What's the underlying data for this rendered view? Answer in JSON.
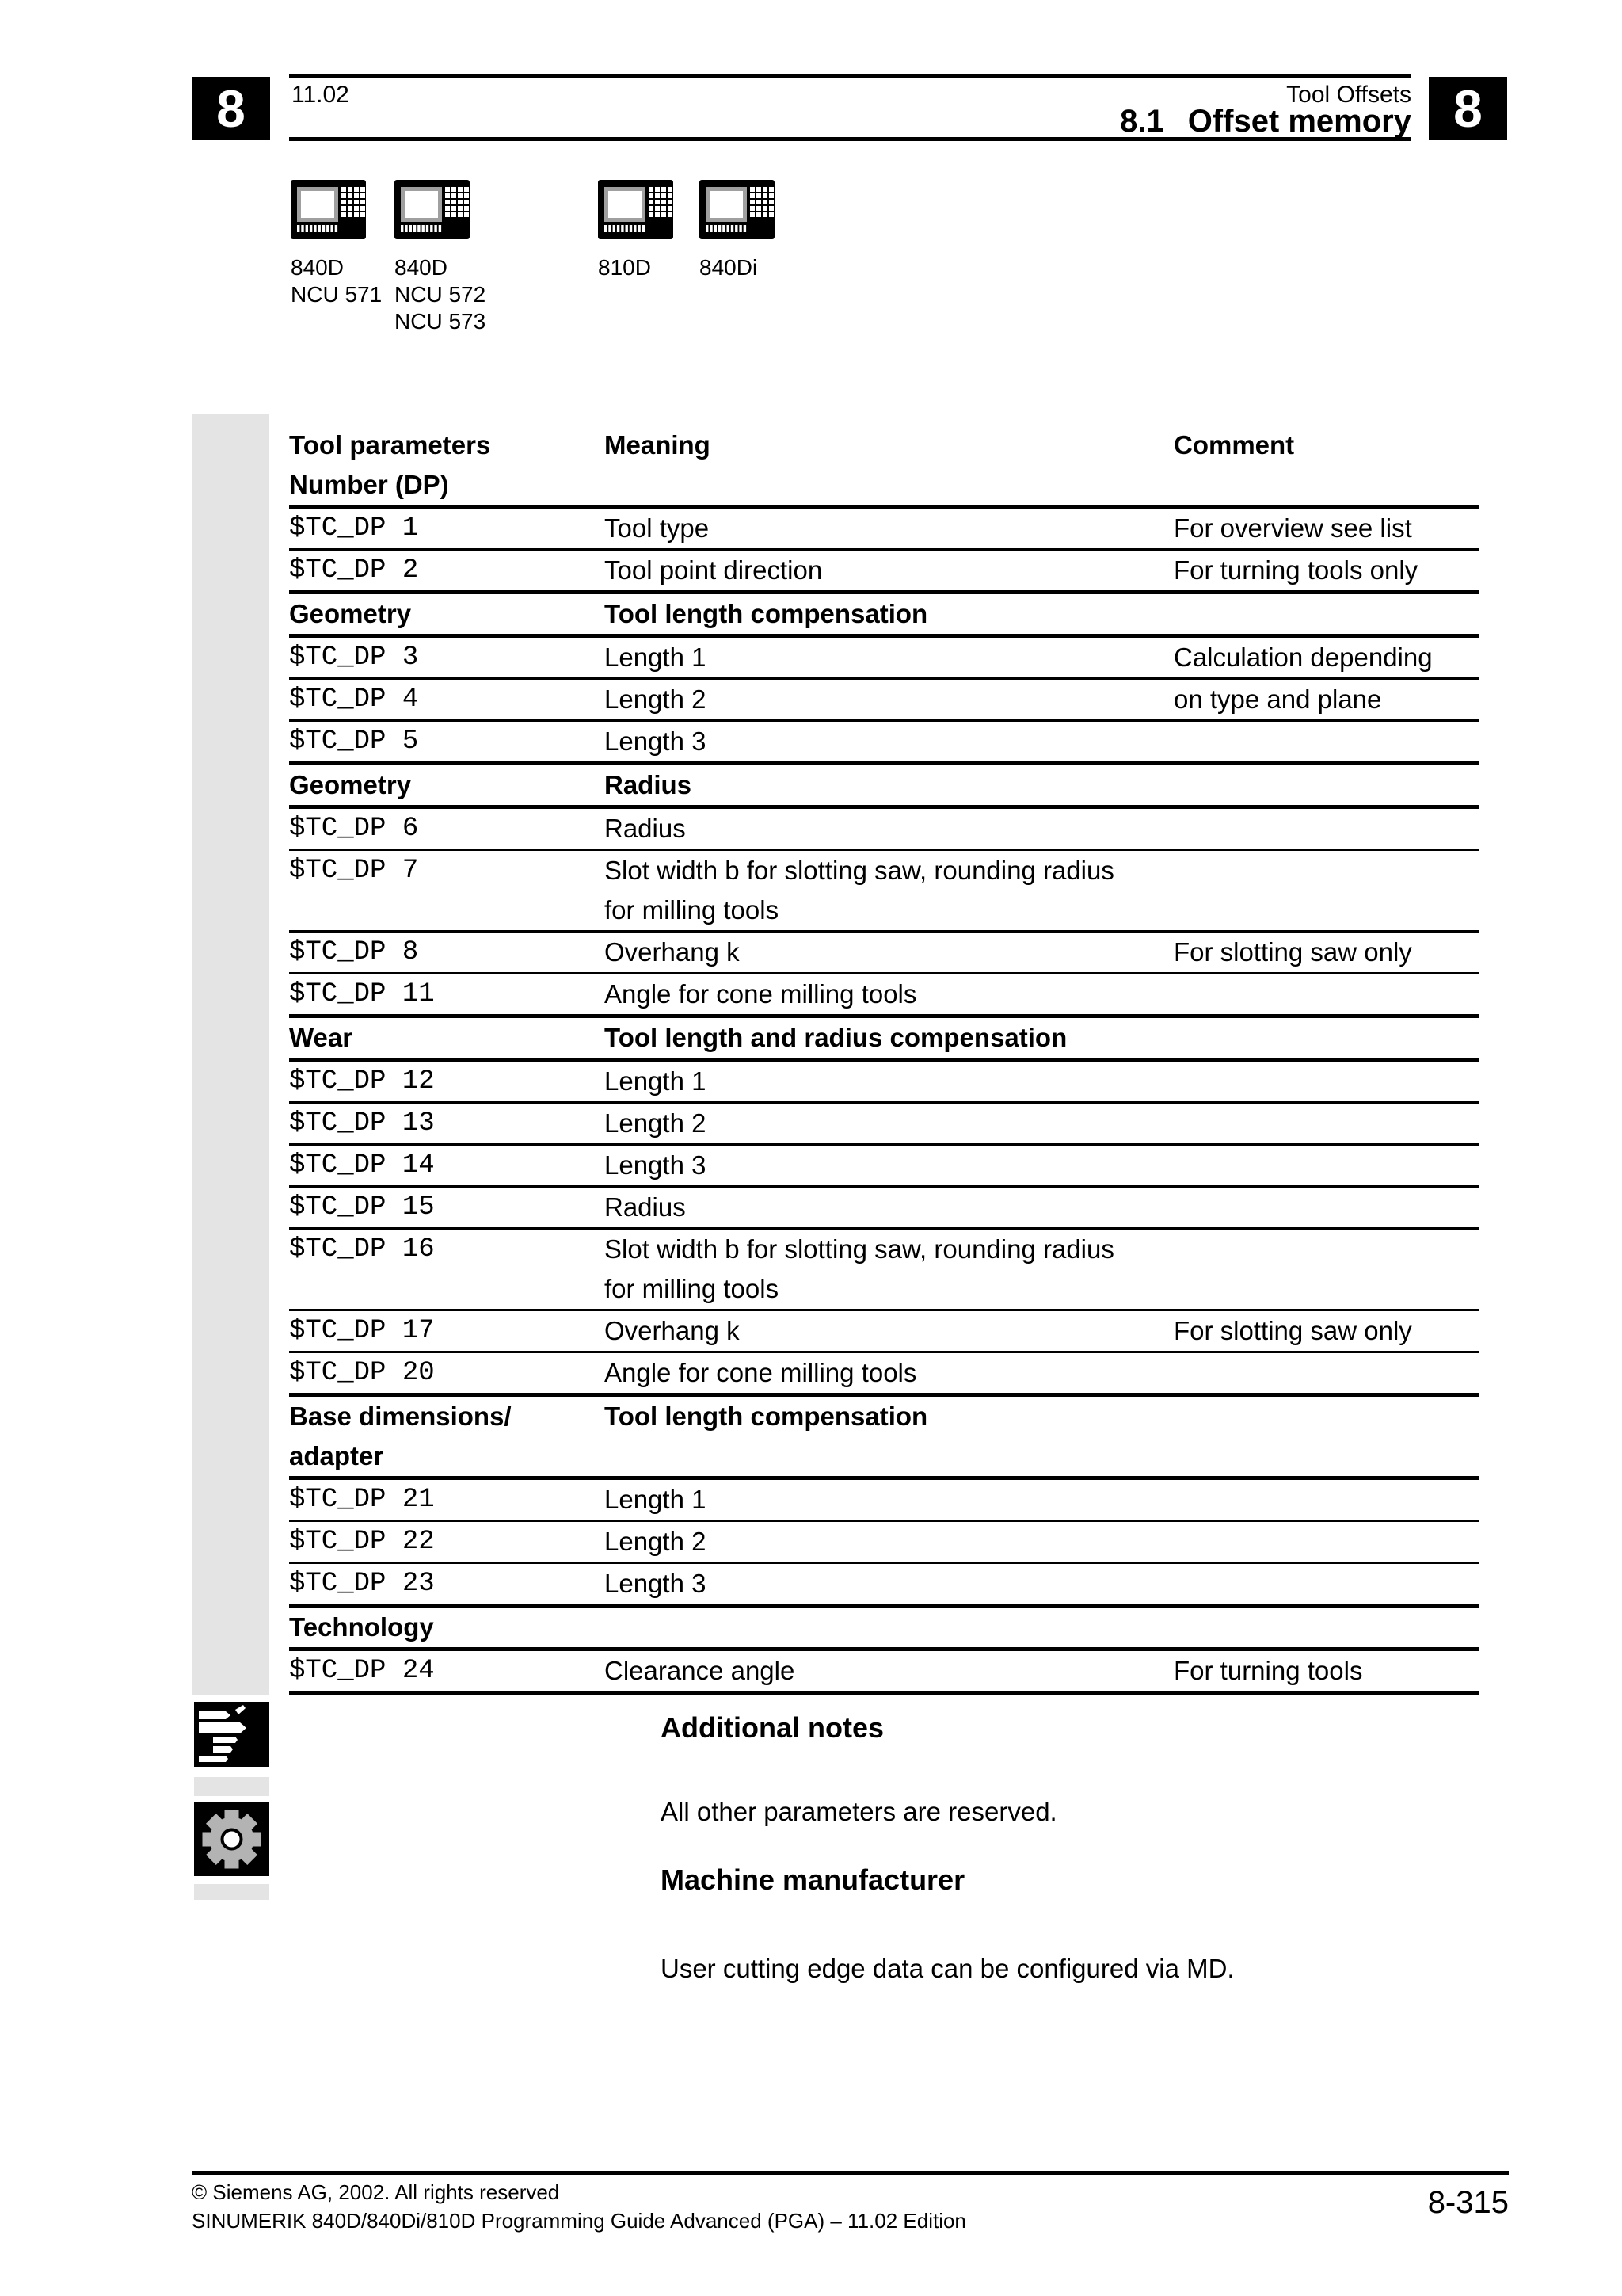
{
  "header": {
    "chapter_number": "8",
    "edition_date": "11.02",
    "chapter_title": "Tool Offsets",
    "section_number": "8.1",
    "section_title": "Offset memory"
  },
  "devices": {
    "items": [
      {
        "icon": "cnc-control-panel-icon",
        "labels": [
          "840D",
          "NCU 571"
        ]
      },
      {
        "icon": "cnc-control-panel-icon",
        "labels": [
          "840D",
          "NCU 572",
          "NCU 573"
        ]
      },
      {
        "icon": "cnc-control-panel-icon",
        "labels": [
          "810D"
        ]
      },
      {
        "icon": "cnc-control-panel-icon",
        "labels": [
          "840Di"
        ]
      }
    ]
  },
  "table": {
    "columns": {
      "param": [
        "Tool parameters",
        "Number (DP)"
      ],
      "meaning": "Meaning",
      "comment": "Comment"
    },
    "rows": [
      {
        "kind": "data",
        "rule": "thick",
        "param": [
          "$TC_DP 1"
        ],
        "meaning": [
          "Tool type"
        ],
        "comment": [
          "For overview see list"
        ]
      },
      {
        "kind": "data",
        "rule": "thin",
        "param": [
          "$TC_DP 2"
        ],
        "meaning": [
          "Tool point direction"
        ],
        "comment": [
          "For turning tools only"
        ]
      },
      {
        "kind": "section",
        "rule": "thick",
        "param": [
          "Geometry"
        ],
        "meaning": [
          "Tool length compensation"
        ],
        "comment": []
      },
      {
        "kind": "data",
        "rule": "thick",
        "param": [
          "$TC_DP 3"
        ],
        "meaning": [
          "Length 1"
        ],
        "comment": [
          "Calculation depending"
        ]
      },
      {
        "kind": "data",
        "rule": "thin",
        "param": [
          "$TC_DP 4"
        ],
        "meaning": [
          "Length 2"
        ],
        "comment": [
          "on type and plane"
        ]
      },
      {
        "kind": "data",
        "rule": "thin",
        "param": [
          "$TC_DP 5"
        ],
        "meaning": [
          "Length 3"
        ],
        "comment": []
      },
      {
        "kind": "section",
        "rule": "thick",
        "param": [
          "Geometry"
        ],
        "meaning": [
          "Radius"
        ],
        "comment": []
      },
      {
        "kind": "data",
        "rule": "thick",
        "param": [
          "$TC_DP 6"
        ],
        "meaning": [
          "Radius"
        ],
        "comment": []
      },
      {
        "kind": "data",
        "rule": "thin",
        "param": [
          "$TC_DP 7"
        ],
        "meaning": [
          "Slot width b for slotting saw, rounding radius",
          "for milling tools"
        ],
        "comment": []
      },
      {
        "kind": "data",
        "rule": "thin",
        "param": [
          "$TC_DP 8"
        ],
        "meaning": [
          "Overhang k"
        ],
        "comment": [
          "For slotting saw only"
        ]
      },
      {
        "kind": "data",
        "rule": "thin",
        "param": [
          "$TC_DP 11"
        ],
        "meaning": [
          "Angle for cone milling tools"
        ],
        "comment": []
      },
      {
        "kind": "section",
        "rule": "thick",
        "param": [
          "Wear"
        ],
        "meaning": [
          "Tool length and radius compensation"
        ],
        "comment": []
      },
      {
        "kind": "data",
        "rule": "thick",
        "param": [
          "$TC_DP 12"
        ],
        "meaning": [
          "Length 1"
        ],
        "comment": []
      },
      {
        "kind": "data",
        "rule": "thin",
        "param": [
          "$TC_DP 13"
        ],
        "meaning": [
          "Length 2"
        ],
        "comment": []
      },
      {
        "kind": "data",
        "rule": "thin",
        "param": [
          "$TC_DP 14"
        ],
        "meaning": [
          "Length 3"
        ],
        "comment": []
      },
      {
        "kind": "data",
        "rule": "thin",
        "param": [
          "$TC_DP 15"
        ],
        "meaning": [
          "Radius"
        ],
        "comment": []
      },
      {
        "kind": "data",
        "rule": "thin",
        "param": [
          "$TC_DP 16"
        ],
        "meaning": [
          "Slot width b for slotting saw, rounding radius",
          "for milling tools"
        ],
        "comment": []
      },
      {
        "kind": "data",
        "rule": "thin",
        "param": [
          "$TC_DP 17"
        ],
        "meaning": [
          "Overhang k"
        ],
        "comment": [
          "For slotting saw only"
        ]
      },
      {
        "kind": "data",
        "rule": "thin",
        "param": [
          "$TC_DP 20"
        ],
        "meaning": [
          "Angle for cone milling tools"
        ],
        "comment": []
      },
      {
        "kind": "section",
        "rule": "thick",
        "param": [
          "Base dimensions/",
          "adapter"
        ],
        "meaning": [
          "Tool length compensation"
        ],
        "comment": []
      },
      {
        "kind": "data",
        "rule": "thick",
        "param": [
          "$TC_DP 21"
        ],
        "meaning": [
          "Length 1"
        ],
        "comment": []
      },
      {
        "kind": "data",
        "rule": "thin",
        "param": [
          "$TC_DP 22"
        ],
        "meaning": [
          "Length 2"
        ],
        "comment": []
      },
      {
        "kind": "data",
        "rule": "thin",
        "param": [
          "$TC_DP 23"
        ],
        "meaning": [
          "Length 3"
        ],
        "comment": []
      },
      {
        "kind": "section",
        "rule": "thick",
        "param": [
          "Technology"
        ],
        "meaning": [],
        "comment": []
      },
      {
        "kind": "data",
        "rule": "thick",
        "param": [
          "$TC_DP 24"
        ],
        "meaning": [
          "Clearance angle"
        ],
        "comment": [
          "For turning tools"
        ]
      }
    ]
  },
  "notes": {
    "additional_notes_heading": "Additional notes",
    "additional_notes_body": "All other parameters are reserved.",
    "machine_manufacturer_heading": "Machine manufacturer",
    "machine_manufacturer_body": "User cutting edge data can be configured via MD."
  },
  "footer": {
    "copyright": "© Siemens AG, 2002. All rights reserved",
    "publication": "SINUMERIK 840D/840Di/810D Programming Guide Advanced (PGA) – 11.02 Edition",
    "page_number": "8-315"
  },
  "colors": {
    "ink": "#000000",
    "paper": "#ffffff",
    "sidebar_gray": "#e4e4e4",
    "gear_gray": "#b3b3b3",
    "screen_frame_gray": "#a0a0a0"
  }
}
